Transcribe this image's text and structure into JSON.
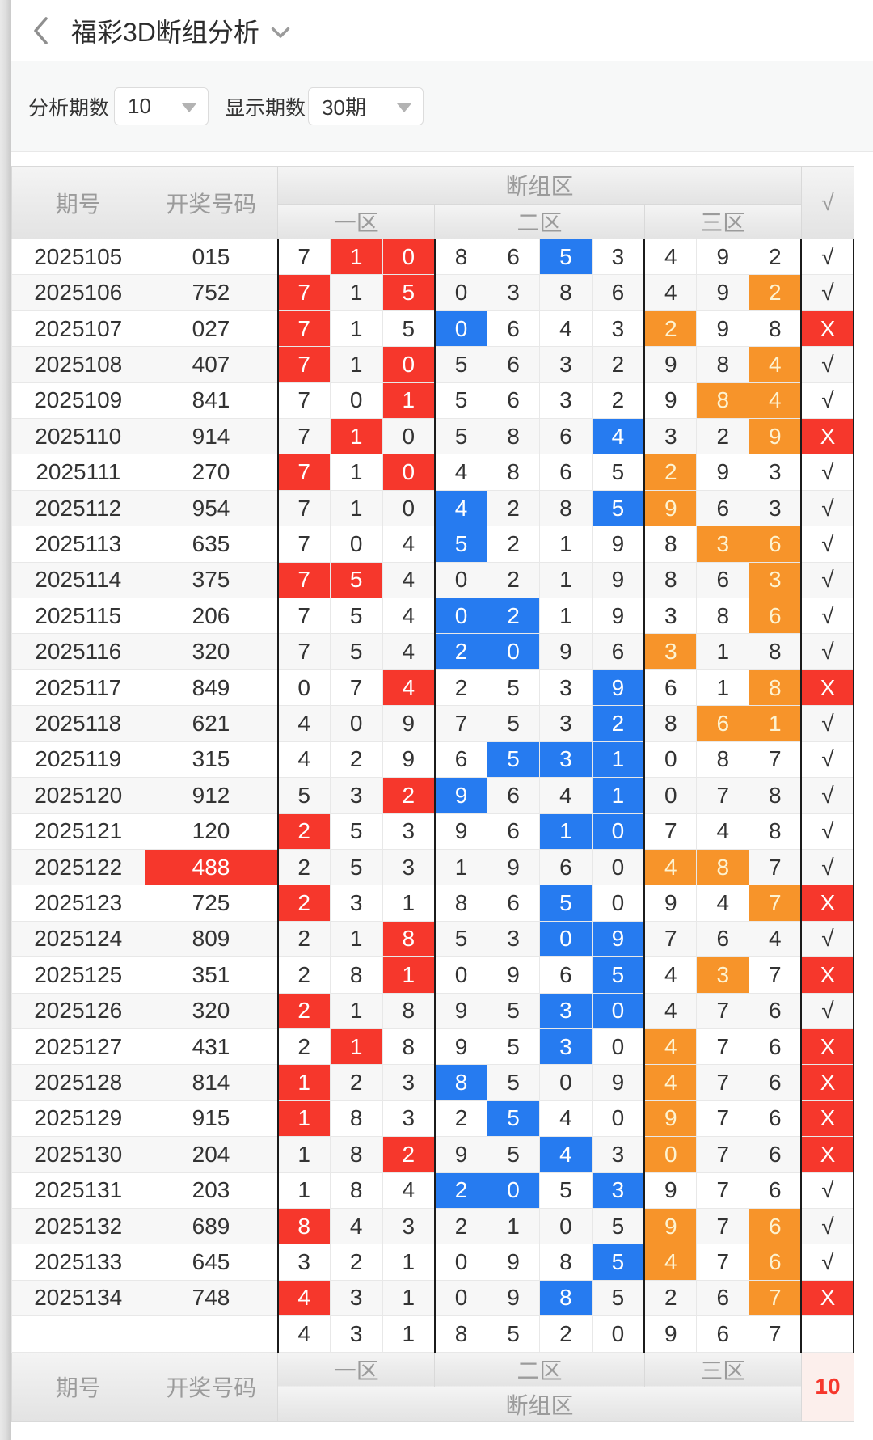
{
  "header": {
    "title": "福彩3D断组分析",
    "back_icon": "chevron-left",
    "dropdown_icon": "chevron-down"
  },
  "controls": {
    "analyze_label": "分析期数",
    "analyze_value": "10",
    "display_label": "显示期数",
    "display_value": "30期"
  },
  "table": {
    "col_period": "期号",
    "col_code": "开奖号码",
    "col_group": "断组区",
    "col_zone1": "一区",
    "col_zone2": "二区",
    "col_zone3": "三区",
    "col_check": "√",
    "check_pass": "√",
    "check_fail": "X",
    "footer_count": "10",
    "zone_sizes": [
      3,
      4,
      3
    ],
    "rows": [
      {
        "period": "2025105",
        "code": "015",
        "cells": [
          "7",
          "1r",
          "0r",
          "8",
          "6",
          "5b",
          "3",
          "4",
          "9",
          "2"
        ],
        "result": "pass"
      },
      {
        "period": "2025106",
        "code": "752",
        "cells": [
          "7r",
          "1",
          "5r",
          "0",
          "3",
          "8",
          "6",
          "4",
          "9",
          "2o"
        ],
        "result": "pass"
      },
      {
        "period": "2025107",
        "code": "027",
        "cells": [
          "7r",
          "1",
          "5",
          "0b",
          "6",
          "4",
          "3",
          "2o",
          "9",
          "8"
        ],
        "result": "fail"
      },
      {
        "period": "2025108",
        "code": "407",
        "cells": [
          "7r",
          "1",
          "0r",
          "5",
          "6",
          "3",
          "2",
          "9",
          "8",
          "4o"
        ],
        "result": "pass"
      },
      {
        "period": "2025109",
        "code": "841",
        "cells": [
          "7",
          "0",
          "1r",
          "5",
          "6",
          "3",
          "2",
          "9",
          "8o",
          "4o"
        ],
        "result": "pass"
      },
      {
        "period": "2025110",
        "code": "914",
        "cells": [
          "7",
          "1r",
          "0",
          "5",
          "8",
          "6",
          "4b",
          "3",
          "2",
          "9o"
        ],
        "result": "fail"
      },
      {
        "period": "2025111",
        "code": "270",
        "cells": [
          "7r",
          "1",
          "0r",
          "4",
          "8",
          "6",
          "5",
          "2o",
          "9",
          "3"
        ],
        "result": "pass"
      },
      {
        "period": "2025112",
        "code": "954",
        "cells": [
          "7",
          "1",
          "0",
          "4b",
          "2",
          "8",
          "5b",
          "9o",
          "6",
          "3"
        ],
        "result": "pass"
      },
      {
        "period": "2025113",
        "code": "635",
        "cells": [
          "7",
          "0",
          "4",
          "5b",
          "2",
          "1",
          "9",
          "8",
          "3o",
          "6o"
        ],
        "result": "pass"
      },
      {
        "period": "2025114",
        "code": "375",
        "cells": [
          "7r",
          "5r",
          "4",
          "0",
          "2",
          "1",
          "9",
          "8",
          "6",
          "3o"
        ],
        "result": "pass"
      },
      {
        "period": "2025115",
        "code": "206",
        "cells": [
          "7",
          "5",
          "4",
          "0b",
          "2b",
          "1",
          "9",
          "3",
          "8",
          "6o"
        ],
        "result": "pass"
      },
      {
        "period": "2025116",
        "code": "320",
        "cells": [
          "7",
          "5",
          "4",
          "2b",
          "0b",
          "9",
          "6",
          "3o",
          "1",
          "8"
        ],
        "result": "pass"
      },
      {
        "period": "2025117",
        "code": "849",
        "cells": [
          "0",
          "7",
          "4r",
          "2",
          "5",
          "3",
          "9b",
          "6",
          "1",
          "8o"
        ],
        "result": "fail"
      },
      {
        "period": "2025118",
        "code": "621",
        "cells": [
          "4",
          "0",
          "9",
          "7",
          "5",
          "3",
          "2b",
          "8",
          "6o",
          "1o"
        ],
        "result": "pass"
      },
      {
        "period": "2025119",
        "code": "315",
        "cells": [
          "4",
          "2",
          "9",
          "6",
          "5b",
          "3b",
          "1b",
          "0",
          "8",
          "7"
        ],
        "result": "pass"
      },
      {
        "period": "2025120",
        "code": "912",
        "cells": [
          "5",
          "3",
          "2r",
          "9b",
          "6",
          "4",
          "1b",
          "0",
          "7",
          "8"
        ],
        "result": "pass"
      },
      {
        "period": "2025121",
        "code": "120",
        "cells": [
          "2r",
          "5",
          "3",
          "9",
          "6",
          "1b",
          "0b",
          "7",
          "4",
          "8"
        ],
        "result": "pass"
      },
      {
        "period": "2025122",
        "code": "488",
        "code_highlight": "red",
        "cells": [
          "2",
          "5",
          "3",
          "1",
          "9",
          "6",
          "0",
          "4o",
          "8o",
          "7"
        ],
        "result": "pass"
      },
      {
        "period": "2025123",
        "code": "725",
        "cells": [
          "2r",
          "3",
          "1",
          "8",
          "6",
          "5b",
          "0",
          "9",
          "4",
          "7o"
        ],
        "result": "fail"
      },
      {
        "period": "2025124",
        "code": "809",
        "cells": [
          "2",
          "1",
          "8r",
          "5",
          "3",
          "0b",
          "9b",
          "7",
          "6",
          "4"
        ],
        "result": "pass"
      },
      {
        "period": "2025125",
        "code": "351",
        "cells": [
          "2",
          "8",
          "1r",
          "0",
          "9",
          "6",
          "5b",
          "4",
          "3o",
          "7"
        ],
        "result": "fail"
      },
      {
        "period": "2025126",
        "code": "320",
        "cells": [
          "2r",
          "1",
          "8",
          "9",
          "5",
          "3b",
          "0b",
          "4",
          "7",
          "6"
        ],
        "result": "pass"
      },
      {
        "period": "2025127",
        "code": "431",
        "cells": [
          "2",
          "1r",
          "8",
          "9",
          "5",
          "3b",
          "0",
          "4o",
          "7",
          "6"
        ],
        "result": "fail"
      },
      {
        "period": "2025128",
        "code": "814",
        "cells": [
          "1r",
          "2",
          "3",
          "8b",
          "5",
          "0",
          "9",
          "4o",
          "7",
          "6"
        ],
        "result": "fail"
      },
      {
        "period": "2025129",
        "code": "915",
        "cells": [
          "1r",
          "8",
          "3",
          "2",
          "5b",
          "4",
          "0",
          "9o",
          "7",
          "6"
        ],
        "result": "fail"
      },
      {
        "period": "2025130",
        "code": "204",
        "cells": [
          "1",
          "8",
          "2r",
          "9",
          "5",
          "4b",
          "3",
          "0o",
          "7",
          "6"
        ],
        "result": "fail"
      },
      {
        "period": "2025131",
        "code": "203",
        "cells": [
          "1",
          "8",
          "4",
          "2b",
          "0b",
          "5",
          "3b",
          "9",
          "7",
          "6"
        ],
        "result": "pass"
      },
      {
        "period": "2025132",
        "code": "689",
        "cells": [
          "8r",
          "4",
          "3",
          "2",
          "1",
          "0",
          "5",
          "9o",
          "7",
          "6o"
        ],
        "result": "pass"
      },
      {
        "period": "2025133",
        "code": "645",
        "cells": [
          "3",
          "2",
          "1",
          "0",
          "9",
          "8",
          "5b",
          "4o",
          "7",
          "6o"
        ],
        "result": "pass"
      },
      {
        "period": "2025134",
        "code": "748",
        "cells": [
          "4r",
          "3",
          "1",
          "0",
          "9",
          "8b",
          "5",
          "2",
          "6",
          "7o"
        ],
        "result": "fail"
      }
    ],
    "prediction_row": {
      "period": "",
      "code": "",
      "cells": [
        "4",
        "3",
        "1",
        "8",
        "5",
        "2",
        "0",
        "9",
        "6",
        "7"
      ],
      "result": ""
    }
  },
  "colors": {
    "red": "#f6372c",
    "blue": "#267bf0",
    "orange": "#f7942a",
    "orange_text": "#fdf3d1",
    "count_bg": "#fcefec"
  }
}
